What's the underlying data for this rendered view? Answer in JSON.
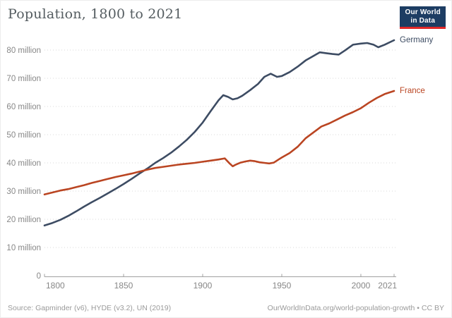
{
  "header": {
    "title": "Population, 1800 to 2021",
    "logo_line1": "Our World",
    "logo_line2": "in Data"
  },
  "chart_data": {
    "type": "line",
    "title": "Population, 1800 to 2021",
    "xlabel": "",
    "ylabel": "",
    "xlim": [
      1800,
      2021
    ],
    "ylim": [
      0,
      80000000
    ],
    "grid": "horizontal-dotted",
    "legend_position": "right-end-labels",
    "x_ticks": [
      1800,
      1850,
      1900,
      1950,
      2000,
      2021
    ],
    "y_ticks": [
      {
        "value": 0,
        "label": "0"
      },
      {
        "value": 10,
        "label": "10 million"
      },
      {
        "value": 20,
        "label": "20 million"
      },
      {
        "value": 30,
        "label": "30 million"
      },
      {
        "value": 40,
        "label": "40 million"
      },
      {
        "value": 50,
        "label": "50 million"
      },
      {
        "value": 60,
        "label": "60 million"
      },
      {
        "value": 70,
        "label": "70 million"
      },
      {
        "value": 80,
        "label": "80 million"
      }
    ],
    "unit": "million",
    "series": [
      {
        "name": "Germany",
        "color": "#3d4c63",
        "points": [
          [
            1800,
            17.8
          ],
          [
            1805,
            18.7
          ],
          [
            1810,
            19.8
          ],
          [
            1815,
            21.2
          ],
          [
            1820,
            22.8
          ],
          [
            1825,
            24.5
          ],
          [
            1830,
            26.1
          ],
          [
            1835,
            27.6
          ],
          [
            1840,
            29.2
          ],
          [
            1845,
            30.8
          ],
          [
            1850,
            32.5
          ],
          [
            1855,
            34.3
          ],
          [
            1860,
            36.2
          ],
          [
            1865,
            38.0
          ],
          [
            1870,
            40.0
          ],
          [
            1875,
            41.7
          ],
          [
            1880,
            43.6
          ],
          [
            1885,
            45.8
          ],
          [
            1890,
            48.2
          ],
          [
            1895,
            51.0
          ],
          [
            1900,
            54.3
          ],
          [
            1905,
            58.3
          ],
          [
            1910,
            62.2
          ],
          [
            1913,
            64.0
          ],
          [
            1916,
            63.4
          ],
          [
            1919,
            62.5
          ],
          [
            1922,
            62.9
          ],
          [
            1925,
            63.8
          ],
          [
            1930,
            65.8
          ],
          [
            1935,
            68.0
          ],
          [
            1939,
            70.5
          ],
          [
            1943,
            71.6
          ],
          [
            1947,
            70.5
          ],
          [
            1950,
            70.8
          ],
          [
            1955,
            72.2
          ],
          [
            1960,
            74.1
          ],
          [
            1965,
            76.3
          ],
          [
            1970,
            77.9
          ],
          [
            1974,
            79.2
          ],
          [
            1978,
            78.9
          ],
          [
            1982,
            78.6
          ],
          [
            1986,
            78.4
          ],
          [
            1990,
            79.9
          ],
          [
            1995,
            81.9
          ],
          [
            2000,
            82.3
          ],
          [
            2004,
            82.5
          ],
          [
            2008,
            81.9
          ],
          [
            2011,
            81.0
          ],
          [
            2015,
            81.9
          ],
          [
            2021,
            83.5
          ]
        ]
      },
      {
        "name": "France",
        "color": "#ba4522",
        "points": [
          [
            1800,
            28.8
          ],
          [
            1805,
            29.5
          ],
          [
            1810,
            30.2
          ],
          [
            1815,
            30.7
          ],
          [
            1820,
            31.4
          ],
          [
            1825,
            32.1
          ],
          [
            1830,
            32.9
          ],
          [
            1835,
            33.6
          ],
          [
            1840,
            34.3
          ],
          [
            1845,
            35.0
          ],
          [
            1850,
            35.6
          ],
          [
            1855,
            36.2
          ],
          [
            1860,
            36.9
          ],
          [
            1865,
            37.6
          ],
          [
            1870,
            38.2
          ],
          [
            1875,
            38.6
          ],
          [
            1880,
            39.0
          ],
          [
            1885,
            39.4
          ],
          [
            1890,
            39.7
          ],
          [
            1895,
            40.0
          ],
          [
            1900,
            40.4
          ],
          [
            1905,
            40.8
          ],
          [
            1910,
            41.2
          ],
          [
            1914,
            41.6
          ],
          [
            1917,
            39.8
          ],
          [
            1919,
            38.8
          ],
          [
            1921,
            39.4
          ],
          [
            1924,
            40.1
          ],
          [
            1927,
            40.5
          ],
          [
            1930,
            40.8
          ],
          [
            1933,
            40.6
          ],
          [
            1936,
            40.2
          ],
          [
            1939,
            40.0
          ],
          [
            1942,
            39.8
          ],
          [
            1945,
            40.1
          ],
          [
            1948,
            41.2
          ],
          [
            1950,
            41.9
          ],
          [
            1955,
            43.5
          ],
          [
            1960,
            45.7
          ],
          [
            1965,
            48.7
          ],
          [
            1970,
            50.8
          ],
          [
            1975,
            52.9
          ],
          [
            1980,
            54.0
          ],
          [
            1985,
            55.4
          ],
          [
            1990,
            56.8
          ],
          [
            1995,
            58.0
          ],
          [
            2000,
            59.4
          ],
          [
            2005,
            61.3
          ],
          [
            2010,
            63.0
          ],
          [
            2015,
            64.4
          ],
          [
            2021,
            65.5
          ]
        ]
      }
    ]
  },
  "footer": {
    "source": "Source: Gapminder (v6), HYDE (v3.2), UN (2019)",
    "link": "OurWorldInData.org/world-population-growth • CC BY"
  }
}
